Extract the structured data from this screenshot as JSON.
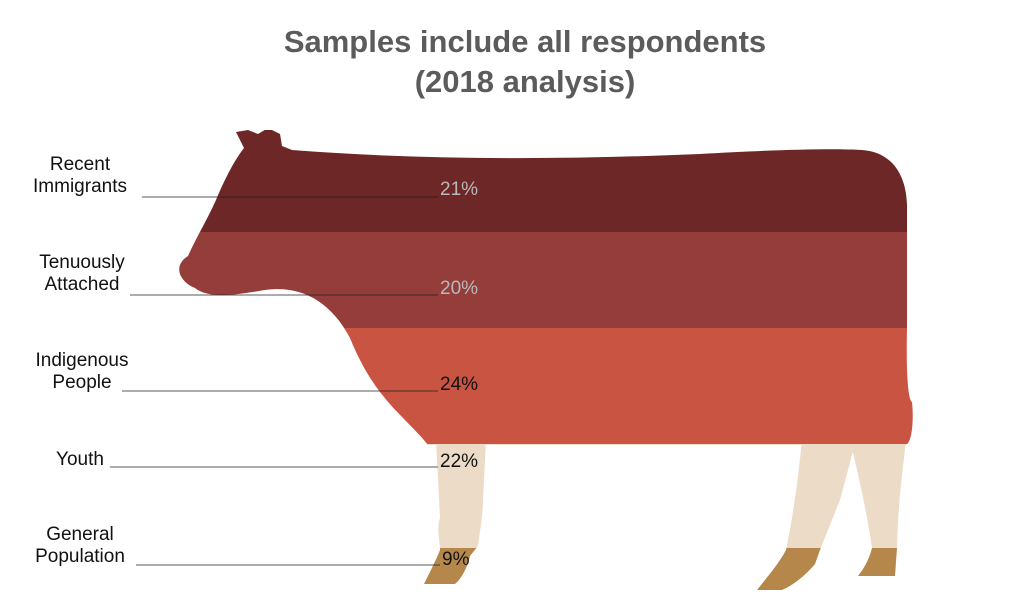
{
  "title_line1": "Samples include all respondents",
  "title_line2": "(2018 analysis)",
  "chart_data": {
    "type": "bar",
    "categories": [
      [
        "Recent",
        "Immigrants"
      ],
      [
        "Tenuously",
        "Attached"
      ],
      [
        "Indigenous",
        "People"
      ],
      [
        "Youth"
      ],
      [
        "General",
        "Population"
      ]
    ],
    "values": [
      21,
      20,
      24,
      22,
      9
    ],
    "value_labels": [
      "21%",
      "20%",
      "24%",
      "22%",
      "9%"
    ],
    "colors": [
      "#6e2727",
      "#953d3a",
      "#c95442",
      "#ecdcc7",
      "#b6874b"
    ],
    "label_colors": [
      "#b9b9b9",
      "#b9b9b9",
      "#111111",
      "#111111",
      "#111111"
    ],
    "title": "Samples include all respondents (2018 analysis)",
    "xlabel": "",
    "ylabel": ""
  }
}
